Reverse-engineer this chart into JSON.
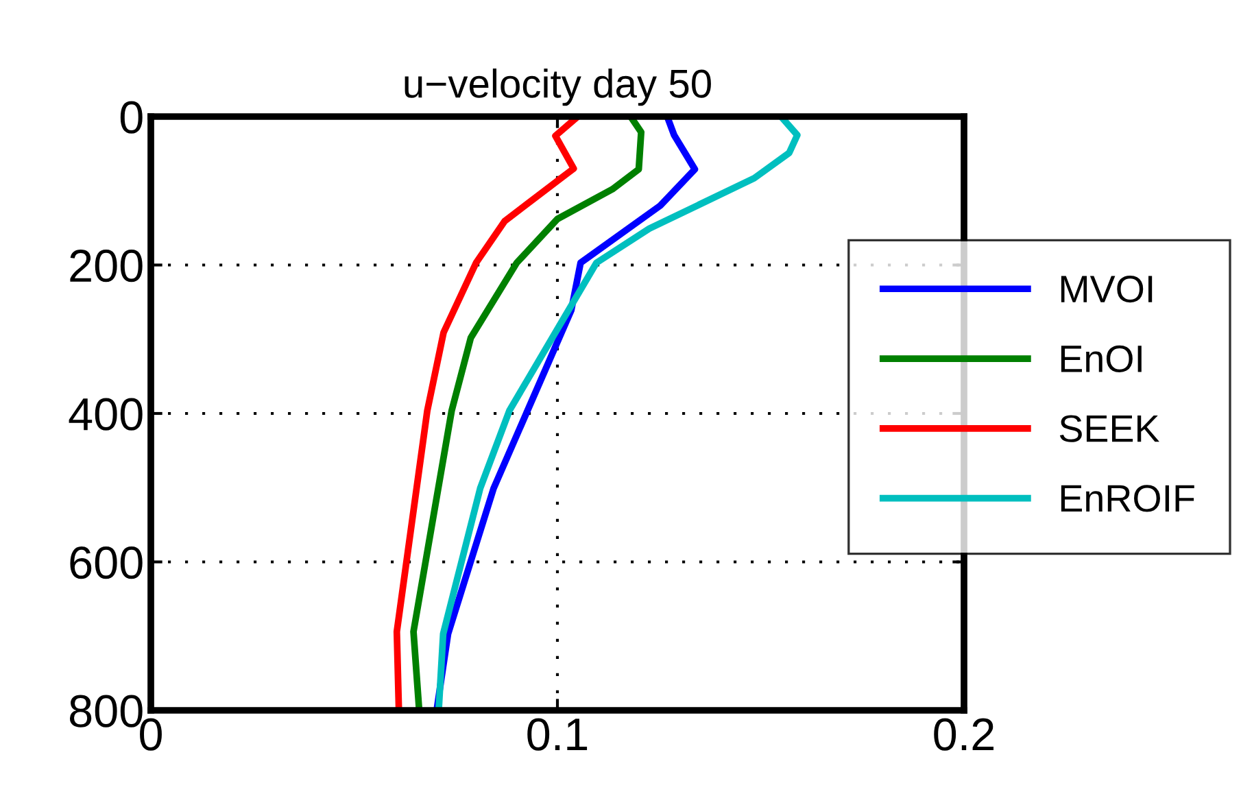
{
  "chart_data": {
    "type": "line",
    "title": "u−velocity day 50",
    "series": [
      {
        "name": "MVOI",
        "color": "#0000ff",
        "x": [
          0.127,
          0.1287,
          0.1338,
          0.1253,
          0.1057,
          0.1034,
          0.0843,
          0.0731,
          0.0703
        ],
        "values": [
          0,
          25,
          71,
          120,
          197,
          261,
          501,
          697,
          800
        ]
      },
      {
        "name": "EnOI",
        "color": "#008000",
        "x": [
          0.118,
          0.1206,
          0.12,
          0.1135,
          0.1,
          0.09,
          0.0787,
          0.074,
          0.0646,
          0.066
        ],
        "values": [
          0,
          21,
          71,
          98,
          138,
          197,
          298,
          396,
          694,
          800
        ]
      },
      {
        "name": "SEEK",
        "color": "#ff0000",
        "x": [
          0.105,
          0.0995,
          0.104,
          0.098,
          0.087,
          0.08,
          0.072,
          0.068,
          0.0605,
          0.061
        ],
        "values": [
          0,
          26,
          70,
          95,
          141,
          197,
          291,
          396,
          694,
          800
        ]
      },
      {
        "name": "EnROIF",
        "color": "#00bfbf",
        "x": [
          0.155,
          0.159,
          0.157,
          0.1484,
          0.1226,
          0.1096,
          0.0882,
          0.081,
          0.0719,
          0.0708
        ],
        "values": [
          0,
          25,
          49,
          83,
          151,
          197,
          396,
          501,
          697,
          800
        ]
      }
    ],
    "xlim": [
      0,
      0.2
    ],
    "xticks": [
      0,
      0.1,
      0.2
    ],
    "ylim": [
      800,
      0
    ],
    "yticks": [
      0,
      200,
      400,
      600,
      800
    ],
    "grid": true,
    "legend": "right",
    "marker": "none",
    "line_style": "solid"
  }
}
